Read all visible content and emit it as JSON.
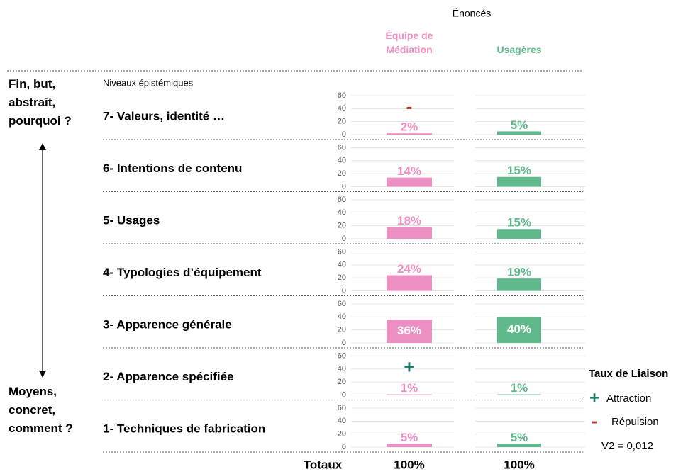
{
  "chart_data": {
    "type": "bar",
    "title": "Énoncés",
    "subtitle": "Niveaux épistémiques",
    "top_label": "Fin, but, abstrait, pourquoi ?",
    "bottom_label": "Moyens, concret, comment ?",
    "categories": [
      "7- Valeurs, identité …",
      "6- Intentions de contenu",
      "5- Usages",
      "4- Typologies d’équipement",
      "3- Apparence générale",
      "2- Apparence spécifiée",
      "1- Techniques de fabrication"
    ],
    "series": [
      {
        "name": "Équipe de Médiation",
        "color": "#ec8fc3",
        "values": [
          2,
          14,
          18,
          24,
          36,
          1,
          5
        ],
        "value_labels": [
          "2%",
          "14%",
          "18%",
          "24%",
          "36%",
          "1%",
          "5%"
        ]
      },
      {
        "name": "Usagères",
        "color": "#5fb98b",
        "values": [
          5,
          15,
          15,
          19,
          40,
          1,
          5
        ],
        "value_labels": [
          "5%",
          "15%",
          "15%",
          "19%",
          "40%",
          "1%",
          "5%"
        ]
      }
    ],
    "ylim": [
      0,
      60
    ],
    "yticks": [
      0,
      20,
      40,
      60
    ],
    "annotations": [
      {
        "category": 0,
        "series": 0,
        "label": "-",
        "color": "#c0392b"
      },
      {
        "category": 5,
        "series": 0,
        "label": "+",
        "color": "#1f7a6e"
      }
    ],
    "totals": {
      "label": "Totaux",
      "values": [
        100,
        100
      ],
      "value_labels": [
        "100%",
        "100%"
      ]
    },
    "legend": {
      "title": "Taux de Liaison",
      "entries": [
        {
          "symbol": "+",
          "label": "Attraction",
          "color": "#1f7a6e"
        },
        {
          "symbol": "-",
          "label": "Répulsion",
          "color": "#c0392b"
        }
      ],
      "note": "V2 = 0,012"
    }
  }
}
